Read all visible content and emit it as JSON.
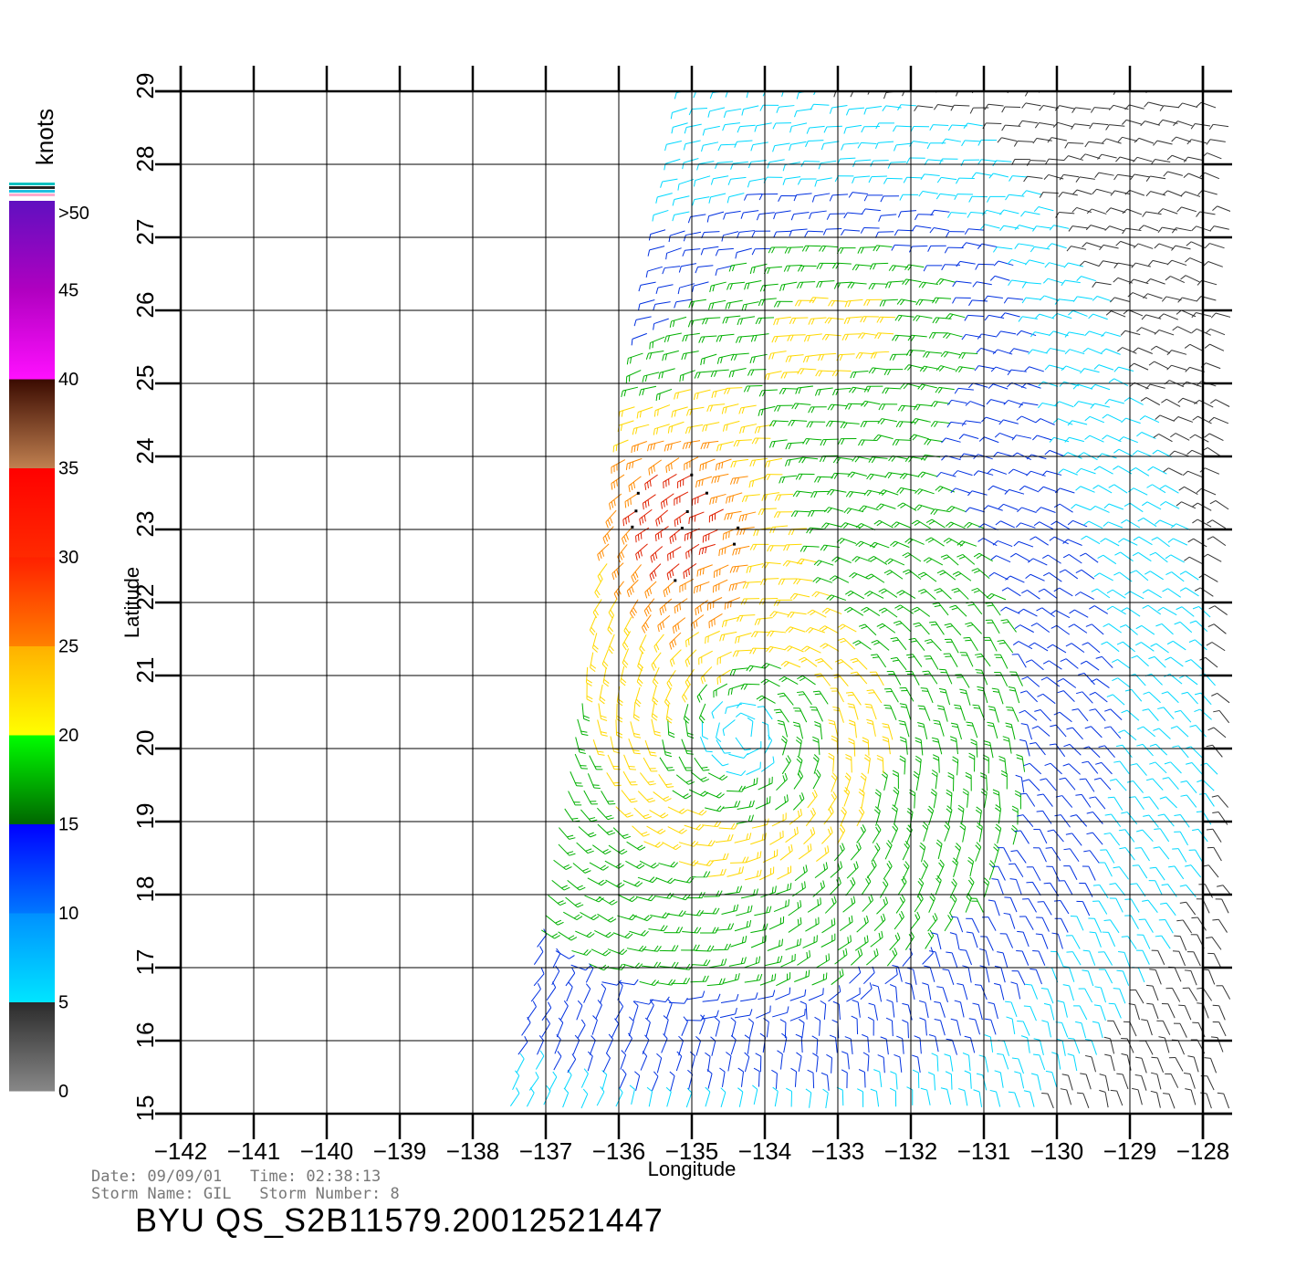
{
  "map": {
    "lon_ticks": [
      "−142",
      "−141",
      "−140",
      "−139",
      "−138",
      "−137",
      "−136",
      "−135",
      "−134",
      "−133",
      "−132",
      "−131",
      "−130",
      "−129",
      "−128"
    ],
    "lat_ticks": [
      "15",
      "16",
      "17",
      "18",
      "19",
      "20",
      "21",
      "22",
      "23",
      "24",
      "25",
      "26",
      "27",
      "28",
      "29"
    ],
    "xlabel": "Longitude",
    "ylabel": "Latitude",
    "lon_range": [
      -142,
      -128
    ],
    "lat_range": [
      15,
      29
    ],
    "storm_center": {
      "lon": -134.3,
      "lat": 20.2
    },
    "swath": {
      "west_edge_south": -137.5,
      "west_edge_north": -135.0
    }
  },
  "legend": {
    "title": "knots",
    "bands": [
      {
        "label": "0",
        "range": [
          0,
          5
        ],
        "color_from": "#888888",
        "color_to": "#2a2a2a"
      },
      {
        "label": "5",
        "range": [
          5,
          10
        ],
        "color_from": "#00e5ff",
        "color_to": "#0090ff"
      },
      {
        "label": "10",
        "range": [
          10,
          15
        ],
        "color_from": "#0077ff",
        "color_to": "#0000ff"
      },
      {
        "label": "15",
        "range": [
          15,
          20
        ],
        "color_from": "#006600",
        "color_to": "#00ff00"
      },
      {
        "label": "20",
        "range": [
          20,
          25
        ],
        "color_from": "#ffff00",
        "color_to": "#ffb000"
      },
      {
        "label": "25",
        "range": [
          25,
          30
        ],
        "color_from": "#ff8000",
        "color_to": "#ff2000"
      },
      {
        "label": "30",
        "range": [
          30,
          35
        ],
        "color_from": "#ff2a00",
        "color_to": "#ff0000"
      },
      {
        "label": "35",
        "range": [
          35,
          40
        ],
        "color_from": "#c08050",
        "color_to": "#3a0a00"
      },
      {
        "label": "40",
        "range": [
          40,
          45
        ],
        "color_from": "#ff10ff",
        "color_to": "#b000c0"
      },
      {
        "label": "45",
        "range": [
          45,
          50
        ],
        "color_from": "#b000c0",
        "color_to": "#6010c0"
      }
    ],
    "top_label": ">50"
  },
  "info": {
    "line1": "Date: 09/09/01   Time: 02:38:13",
    "line2": "Storm Name: GIL   Storm Number: 8",
    "product": "BYU QS_S2B11579.20012521447"
  },
  "colors": {
    "grid": "#000000",
    "calm": "#333333",
    "cyan": "#00d8ff",
    "blue": "#0030e0",
    "green": "#00b000",
    "yellow": "#ffd800",
    "orange": "#ff8a00",
    "red": "#e02000",
    "brown": "#7a2a10"
  }
}
